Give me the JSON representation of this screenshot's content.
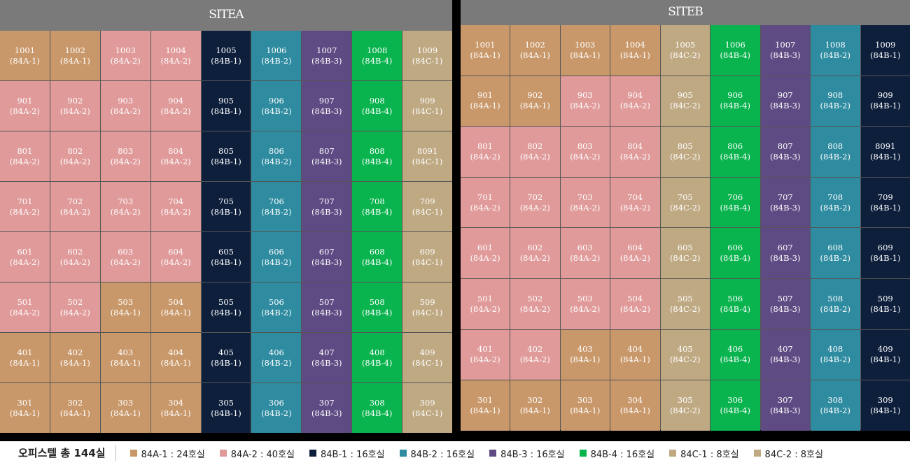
{
  "colors": {
    "84A-1": "#c9986a",
    "84A-2": "#e09a9a",
    "84B-1": "#0e1f3c",
    "84B-2": "#2e8ba0",
    "84B-3": "#5f4b84",
    "84B-4": "#09b34e",
    "84C-1": "#bfa983",
    "84C-2": "#bfa983"
  },
  "siteA": {
    "title": "SITEA",
    "rows": [
      [
        [
          "1001",
          "(84A-1)",
          "84A-1"
        ],
        [
          "1002",
          "(84A-1)",
          "84A-1"
        ],
        [
          "1003",
          "(84A-2)",
          "84A-2"
        ],
        [
          "1004",
          "(84A-2)",
          "84A-2"
        ],
        [
          "1005",
          "(84B-1)",
          "84B-1"
        ],
        [
          "1006",
          "(84B-2)",
          "84B-2"
        ],
        [
          "1007",
          "(84B-3)",
          "84B-3"
        ],
        [
          "1008",
          "(84B-4)",
          "84B-4"
        ],
        [
          "1009",
          "(84C-1)",
          "84C-1"
        ]
      ],
      [
        [
          "901",
          "(84A-2)",
          "84A-2"
        ],
        [
          "902",
          "(84A-2)",
          "84A-2"
        ],
        [
          "903",
          "(84A-2)",
          "84A-2"
        ],
        [
          "904",
          "(84A-2)",
          "84A-2"
        ],
        [
          "905",
          "(84B-1)",
          "84B-1"
        ],
        [
          "906",
          "(84B-2)",
          "84B-2"
        ],
        [
          "907",
          "(84B-3)",
          "84B-3"
        ],
        [
          "908",
          "(84B-4)",
          "84B-4"
        ],
        [
          "909",
          "(84C-1)",
          "84C-1"
        ]
      ],
      [
        [
          "801",
          "(84A-2)",
          "84A-2"
        ],
        [
          "802",
          "(84A-2)",
          "84A-2"
        ],
        [
          "803",
          "(84A-2)",
          "84A-2"
        ],
        [
          "804",
          "(84A-2)",
          "84A-2"
        ],
        [
          "805",
          "(84B-1)",
          "84B-1"
        ],
        [
          "806",
          "(84B-2)",
          "84B-2"
        ],
        [
          "807",
          "(84B-3)",
          "84B-3"
        ],
        [
          "808",
          "(84B-4)",
          "84B-4"
        ],
        [
          "8091",
          "(84C-1)",
          "84C-1"
        ]
      ],
      [
        [
          "701",
          "(84A-2)",
          "84A-2"
        ],
        [
          "702",
          "(84A-2)",
          "84A-2"
        ],
        [
          "703",
          "(84A-2)",
          "84A-2"
        ],
        [
          "704",
          "(84A-2)",
          "84A-2"
        ],
        [
          "705",
          "(84B-1)",
          "84B-1"
        ],
        [
          "706",
          "(84B-2)",
          "84B-2"
        ],
        [
          "707",
          "(84B-3)",
          "84B-3"
        ],
        [
          "708",
          "(84B-4)",
          "84B-4"
        ],
        [
          "709",
          "(84C-1)",
          "84C-1"
        ]
      ],
      [
        [
          "601",
          "(84A-2)",
          "84A-2"
        ],
        [
          "602",
          "(84A-2)",
          "84A-2"
        ],
        [
          "603",
          "(84A-2)",
          "84A-2"
        ],
        [
          "604",
          "(84A-2)",
          "84A-2"
        ],
        [
          "605",
          "(84B-1)",
          "84B-1"
        ],
        [
          "606",
          "(84B-2)",
          "84B-2"
        ],
        [
          "607",
          "(84B-3)",
          "84B-3"
        ],
        [
          "608",
          "(84B-4)",
          "84B-4"
        ],
        [
          "609",
          "(84C-1)",
          "84C-1"
        ]
      ],
      [
        [
          "501",
          "(84A-2)",
          "84A-2"
        ],
        [
          "502",
          "(84A-2)",
          "84A-2"
        ],
        [
          "503",
          "(84A-1)",
          "84A-1"
        ],
        [
          "504",
          "(84A-1)",
          "84A-1"
        ],
        [
          "505",
          "(84B-1)",
          "84B-1"
        ],
        [
          "506",
          "(84B-2)",
          "84B-2"
        ],
        [
          "507",
          "(84B-3)",
          "84B-3"
        ],
        [
          "508",
          "(84B-4)",
          "84B-4"
        ],
        [
          "509",
          "(84C-1)",
          "84C-1"
        ]
      ],
      [
        [
          "401",
          "(84A-1)",
          "84A-1"
        ],
        [
          "402",
          "(84A-1)",
          "84A-1"
        ],
        [
          "403",
          "(84A-1)",
          "84A-1"
        ],
        [
          "404",
          "(84A-1)",
          "84A-1"
        ],
        [
          "405",
          "(84B-1)",
          "84B-1"
        ],
        [
          "406",
          "(84B-2)",
          "84B-2"
        ],
        [
          "407",
          "(84B-3)",
          "84B-3"
        ],
        [
          "408",
          "(84B-4)",
          "84B-4"
        ],
        [
          "409",
          "(84C-1)",
          "84C-1"
        ]
      ],
      [
        [
          "301",
          "(84A-1)",
          "84A-1"
        ],
        [
          "302",
          "(84A-1)",
          "84A-1"
        ],
        [
          "303",
          "(84A-1)",
          "84A-1"
        ],
        [
          "304",
          "(84A-1)",
          "84A-1"
        ],
        [
          "305",
          "(84B-1)",
          "84B-1"
        ],
        [
          "306",
          "(84B-2)",
          "84B-2"
        ],
        [
          "307",
          "(84B-3)",
          "84B-3"
        ],
        [
          "308",
          "(84B-4)",
          "84B-4"
        ],
        [
          "309",
          "(84C-1)",
          "84C-1"
        ]
      ]
    ]
  },
  "siteB": {
    "title": "SITEB",
    "rows": [
      [
        [
          "1001",
          "(84A-1)",
          "84A-1"
        ],
        [
          "1002",
          "(84A-1)",
          "84A-1"
        ],
        [
          "1003",
          "(84A-1)",
          "84A-1"
        ],
        [
          "1004",
          "(84A-1)",
          "84A-1"
        ],
        [
          "1005",
          "(84C-2)",
          "84C-2"
        ],
        [
          "1006",
          "(84B-4)",
          "84B-4"
        ],
        [
          "1007",
          "(84B-3)",
          "84B-3"
        ],
        [
          "1008",
          "(84B-2)",
          "84B-2"
        ],
        [
          "1009",
          "(84B-1)",
          "84B-1"
        ]
      ],
      [
        [
          "901",
          "(84A-1)",
          "84A-1"
        ],
        [
          "902",
          "(84A-1)",
          "84A-1"
        ],
        [
          "903",
          "(84A-2)",
          "84A-2"
        ],
        [
          "904",
          "(84A-2)",
          "84A-2"
        ],
        [
          "905",
          "(84C-2)",
          "84C-2"
        ],
        [
          "906",
          "(84B-4)",
          "84B-4"
        ],
        [
          "907",
          "(84B-3)",
          "84B-3"
        ],
        [
          "908",
          "(84B-2)",
          "84B-2"
        ],
        [
          "909",
          "(84B-1)",
          "84B-1"
        ]
      ],
      [
        [
          "801",
          "(84A-2)",
          "84A-2"
        ],
        [
          "802",
          "(84A-2)",
          "84A-2"
        ],
        [
          "803",
          "(84A-2)",
          "84A-2"
        ],
        [
          "804",
          "(84A-2)",
          "84A-2"
        ],
        [
          "805",
          "(84C-2)",
          "84C-2"
        ],
        [
          "806",
          "(84B-4)",
          "84B-4"
        ],
        [
          "807",
          "(84B-3)",
          "84B-3"
        ],
        [
          "808",
          "(84B-2)",
          "84B-2"
        ],
        [
          "8091",
          "(84B-1)",
          "84B-1"
        ]
      ],
      [
        [
          "701",
          "(84A-2)",
          "84A-2"
        ],
        [
          "702",
          "(84A-2)",
          "84A-2"
        ],
        [
          "703",
          "(84A-2)",
          "84A-2"
        ],
        [
          "704",
          "(84A-2)",
          "84A-2"
        ],
        [
          "705",
          "(84C-2)",
          "84C-2"
        ],
        [
          "706",
          "(84B-4)",
          "84B-4"
        ],
        [
          "707",
          "(84B-3)",
          "84B-3"
        ],
        [
          "708",
          "(84B-2)",
          "84B-2"
        ],
        [
          "709",
          "(84B-1)",
          "84B-1"
        ]
      ],
      [
        [
          "601",
          "(84A-2)",
          "84A-2"
        ],
        [
          "602",
          "(84A-2)",
          "84A-2"
        ],
        [
          "603",
          "(84A-2)",
          "84A-2"
        ],
        [
          "604",
          "(84A-2)",
          "84A-2"
        ],
        [
          "605",
          "(84C-2)",
          "84C-2"
        ],
        [
          "606",
          "(84B-4)",
          "84B-4"
        ],
        [
          "607",
          "(84B-3)",
          "84B-3"
        ],
        [
          "608",
          "(84B-2)",
          "84B-2"
        ],
        [
          "609",
          "(84B-1)",
          "84B-1"
        ]
      ],
      [
        [
          "501",
          "(84A-2)",
          "84A-2"
        ],
        [
          "502",
          "(84A-2)",
          "84A-2"
        ],
        [
          "503",
          "(84A-2)",
          "84A-2"
        ],
        [
          "504",
          "(84A-2)",
          "84A-2"
        ],
        [
          "505",
          "(84C-2)",
          "84C-2"
        ],
        [
          "506",
          "(84B-4)",
          "84B-4"
        ],
        [
          "507",
          "(84B-3)",
          "84B-3"
        ],
        [
          "508",
          "(84B-2)",
          "84B-2"
        ],
        [
          "509",
          "(84B-1)",
          "84B-1"
        ]
      ],
      [
        [
          "401",
          "(84A-2)",
          "84A-2"
        ],
        [
          "402",
          "(84A-2)",
          "84A-2"
        ],
        [
          "403",
          "(84A-1)",
          "84A-1"
        ],
        [
          "404",
          "(84A-1)",
          "84A-1"
        ],
        [
          "405",
          "(84C-2)",
          "84C-2"
        ],
        [
          "406",
          "(84B-4)",
          "84B-4"
        ],
        [
          "407",
          "(84B-3)",
          "84B-3"
        ],
        [
          "408",
          "(84B-2)",
          "84B-2"
        ],
        [
          "409",
          "(84B-1)",
          "84B-1"
        ]
      ],
      [
        [
          "301",
          "(84A-1)",
          "84A-1"
        ],
        [
          "302",
          "(84A-1)",
          "84A-1"
        ],
        [
          "303",
          "(84A-1)",
          "84A-1"
        ],
        [
          "304",
          "(84A-1)",
          "84A-1"
        ],
        [
          "305",
          "(84C-2)",
          "84C-2"
        ],
        [
          "306",
          "(84B-4)",
          "84B-4"
        ],
        [
          "307",
          "(84B-3)",
          "84B-3"
        ],
        [
          "308",
          "(84B-2)",
          "84B-2"
        ],
        [
          "309",
          "(84B-1)",
          "84B-1"
        ]
      ]
    ]
  },
  "legend": {
    "total": "오피스텔 총 144실",
    "items": [
      {
        "type": "84A-1",
        "label": "84A-1 : 24호실"
      },
      {
        "type": "84A-2",
        "label": "84A-2 : 40호실"
      },
      {
        "type": "84B-1",
        "label": "84B-1 : 16호실"
      },
      {
        "type": "84B-2",
        "label": "84B-2 : 16호실"
      },
      {
        "type": "84B-3",
        "label": "84B-3 : 16호실"
      },
      {
        "type": "84B-4",
        "label": "84B-4 : 16호실"
      },
      {
        "type": "84C-1",
        "label": "84C-1 : 8호실"
      },
      {
        "type": "84C-2",
        "label": "84C-2 : 8호실"
      }
    ]
  }
}
